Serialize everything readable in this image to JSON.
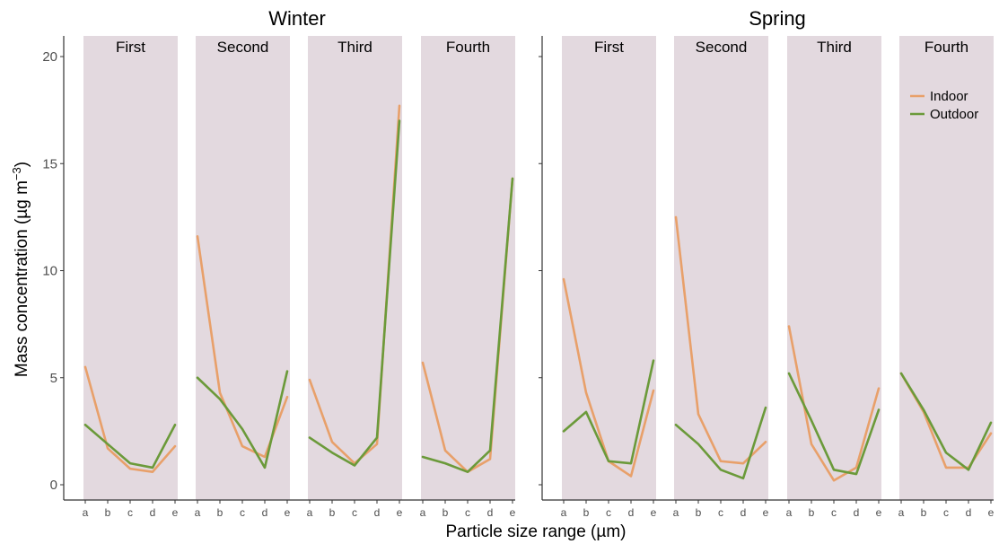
{
  "chart_data": {
    "type": "line",
    "ylabel_text": "Mass concentration (µg m",
    "ylabel_exp": "−3",
    "ylabel_close": ")",
    "xlabel": "Particle size range (µm)",
    "ylim": [
      0,
      21
    ],
    "yticks": [
      0,
      5,
      10,
      15,
      20
    ],
    "categories": [
      "a",
      "b",
      "c",
      "d",
      "e"
    ],
    "grid": false,
    "legend": {
      "position": "top-right",
      "entries": [
        {
          "name": "Indoor",
          "color": "#e8a06a"
        },
        {
          "name": "Outdoor",
          "color": "#6b9a3a"
        }
      ]
    },
    "colors": {
      "panel_background": "#e3d9df",
      "indoor": "#e8a06a",
      "outdoor": "#6b9a3a"
    },
    "seasons": [
      {
        "name": "Winter",
        "panels": [
          {
            "title": "First",
            "series": [
              {
                "name": "Indoor",
                "values": [
                  5.5,
                  1.7,
                  0.75,
                  0.6,
                  1.8
                ]
              },
              {
                "name": "Outdoor",
                "values": [
                  2.8,
                  1.9,
                  1.0,
                  0.8,
                  2.8
                ]
              }
            ]
          },
          {
            "title": "Second",
            "series": [
              {
                "name": "Indoor",
                "values": [
                  11.6,
                  4.3,
                  1.8,
                  1.3,
                  4.1
                ]
              },
              {
                "name": "Outdoor",
                "values": [
                  5.0,
                  4.0,
                  2.6,
                  0.8,
                  5.3
                ]
              }
            ]
          },
          {
            "title": "Third",
            "series": [
              {
                "name": "Indoor",
                "values": [
                  4.9,
                  2.0,
                  1.0,
                  1.9,
                  17.7
                ]
              },
              {
                "name": "Outdoor",
                "values": [
                  2.2,
                  1.5,
                  0.9,
                  2.2,
                  17.0
                ]
              }
            ]
          },
          {
            "title": "Fourth",
            "series": [
              {
                "name": "Indoor",
                "values": [
                  5.7,
                  1.6,
                  0.6,
                  1.2,
                  14.3
                ]
              },
              {
                "name": "Outdoor",
                "values": [
                  1.3,
                  1.0,
                  0.6,
                  1.6,
                  14.3
                ]
              }
            ]
          }
        ]
      },
      {
        "name": "Spring",
        "panels": [
          {
            "title": "First",
            "series": [
              {
                "name": "Indoor",
                "values": [
                  9.6,
                  4.3,
                  1.1,
                  0.4,
                  4.4
                ]
              },
              {
                "name": "Outdoor",
                "values": [
                  2.5,
                  3.4,
                  1.1,
                  1.0,
                  5.8
                ]
              }
            ]
          },
          {
            "title": "Second",
            "series": [
              {
                "name": "Indoor",
                "values": [
                  12.5,
                  3.3,
                  1.1,
                  1.0,
                  2.0
                ]
              },
              {
                "name": "Outdoor",
                "values": [
                  2.8,
                  1.9,
                  0.7,
                  0.3,
                  3.6
                ]
              }
            ]
          },
          {
            "title": "Third",
            "series": [
              {
                "name": "Indoor",
                "values": [
                  7.4,
                  1.9,
                  0.2,
                  0.8,
                  4.5
                ]
              },
              {
                "name": "Outdoor",
                "values": [
                  5.2,
                  3.0,
                  0.7,
                  0.5,
                  3.5
                ]
              }
            ]
          },
          {
            "title": "Fourth",
            "series": [
              {
                "name": "Indoor",
                "values": [
                  5.2,
                  3.4,
                  0.8,
                  0.8,
                  2.4
                ]
              },
              {
                "name": "Outdoor",
                "values": [
                  5.2,
                  3.5,
                  1.5,
                  0.7,
                  2.9
                ]
              }
            ]
          }
        ]
      }
    ]
  }
}
